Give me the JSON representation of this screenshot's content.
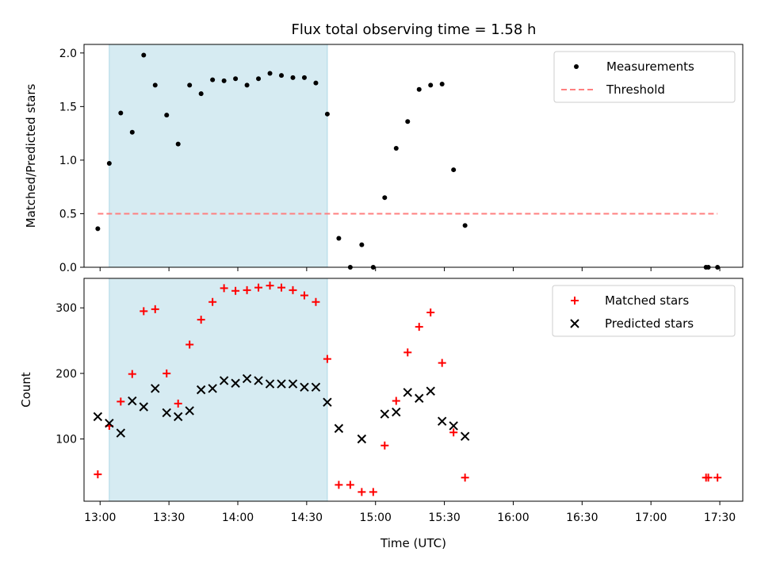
{
  "title": "Flux total observing time = 1.58 h",
  "colors": {
    "observing_band": "#add8e6",
    "measurements": "#000000",
    "threshold": "#ff7f7f",
    "matched": "#ff0000",
    "predicted": "#000000"
  },
  "chart_data": [
    {
      "type": "scatter",
      "panel": "top",
      "ylabel": "Matched/Predicted stars",
      "xlim": [
        "12:53",
        "17:40"
      ],
      "ylim": [
        0,
        2.08
      ],
      "yticks": [
        {
          "v": 0,
          "label": "0.0"
        },
        {
          "v": 0.5,
          "label": "0.5"
        },
        {
          "v": 1.0,
          "label": "1.0"
        },
        {
          "v": 1.5,
          "label": "1.5"
        },
        {
          "v": 2.0,
          "label": "2.0"
        }
      ],
      "xticks": [
        "13:00",
        "13:30",
        "14:00",
        "14:30",
        "15:00",
        "15:30",
        "16:00",
        "16:30",
        "17:00",
        "17:30"
      ],
      "grid": false,
      "legend_position": "top-right",
      "observing_band": {
        "start": "13:04",
        "end": "14:39"
      },
      "series": [
        {
          "name": "Measurements",
          "marker": "dot",
          "points": [
            [
              "12:59",
              0.36
            ],
            [
              "13:04",
              0.97
            ],
            [
              "13:09",
              1.44
            ],
            [
              "13:14",
              1.26
            ],
            [
              "13:19",
              1.98
            ],
            [
              "13:24",
              1.7
            ],
            [
              "13:29",
              1.42
            ],
            [
              "13:34",
              1.15
            ],
            [
              "13:39",
              1.7
            ],
            [
              "13:44",
              1.62
            ],
            [
              "13:49",
              1.75
            ],
            [
              "13:54",
              1.74
            ],
            [
              "13:59",
              1.76
            ],
            [
              "14:04",
              1.7
            ],
            [
              "14:09",
              1.76
            ],
            [
              "14:14",
              1.81
            ],
            [
              "14:19",
              1.79
            ],
            [
              "14:24",
              1.77
            ],
            [
              "14:29",
              1.77
            ],
            [
              "14:34",
              1.72
            ],
            [
              "14:39",
              1.43
            ],
            [
              "14:44",
              0.27
            ],
            [
              "14:49",
              0.0
            ],
            [
              "14:54",
              0.21
            ],
            [
              "14:59",
              0.0
            ],
            [
              "15:04",
              0.65
            ],
            [
              "15:09",
              1.11
            ],
            [
              "15:14",
              1.36
            ],
            [
              "15:19",
              1.66
            ],
            [
              "15:24",
              1.7
            ],
            [
              "15:29",
              1.71
            ],
            [
              "15:34",
              0.91
            ],
            [
              "15:39",
              0.39
            ],
            [
              "17:24",
              0.0
            ],
            [
              "17:25",
              0.0
            ],
            [
              "17:29",
              0.0
            ]
          ]
        },
        {
          "name": "Threshold",
          "style": "dashed",
          "points": [
            [
              "12:59",
              0.5
            ],
            [
              "17:29",
              0.5
            ]
          ]
        }
      ]
    },
    {
      "type": "scatter",
      "panel": "bottom",
      "xlabel": "Time (UTC)",
      "ylabel": "Count",
      "xlim": [
        "12:53",
        "17:40"
      ],
      "ylim": [
        5,
        345
      ],
      "yticks": [
        {
          "v": 100,
          "label": "100"
        },
        {
          "v": 200,
          "label": "200"
        },
        {
          "v": 300,
          "label": "300"
        }
      ],
      "xticks": [
        "13:00",
        "13:30",
        "14:00",
        "14:30",
        "15:00",
        "15:30",
        "16:00",
        "16:30",
        "17:00",
        "17:30"
      ],
      "grid": false,
      "legend_position": "top-right",
      "observing_band": {
        "start": "13:04",
        "end": "14:39"
      },
      "series": [
        {
          "name": "Matched stars",
          "marker": "plus",
          "points": [
            [
              "12:59",
              46
            ],
            [
              "13:04",
              120
            ],
            [
              "13:09",
              157
            ],
            [
              "13:14",
              199
            ],
            [
              "13:19",
              295
            ],
            [
              "13:24",
              298
            ],
            [
              "13:29",
              200
            ],
            [
              "13:34",
              154
            ],
            [
              "13:39",
              244
            ],
            [
              "13:44",
              282
            ],
            [
              "13:49",
              309
            ],
            [
              "13:54",
              330
            ],
            [
              "13:59",
              326
            ],
            [
              "14:04",
              327
            ],
            [
              "14:09",
              331
            ],
            [
              "14:14",
              334
            ],
            [
              "14:19",
              331
            ],
            [
              "14:24",
              327
            ],
            [
              "14:29",
              319
            ],
            [
              "14:34",
              309
            ],
            [
              "14:39",
              222
            ],
            [
              "14:44",
              30
            ],
            [
              "14:49",
              30
            ],
            [
              "14:54",
              19
            ],
            [
              "14:59",
              19
            ],
            [
              "15:04",
              90
            ],
            [
              "15:09",
              158
            ],
            [
              "15:14",
              232
            ],
            [
              "15:19",
              271
            ],
            [
              "15:24",
              293
            ],
            [
              "15:29",
              216
            ],
            [
              "15:34",
              110
            ],
            [
              "15:39",
              41
            ],
            [
              "17:24",
              41
            ],
            [
              "17:25",
              41
            ],
            [
              "17:29",
              41
            ]
          ]
        },
        {
          "name": "Predicted stars",
          "marker": "x",
          "points": [
            [
              "12:59",
              134
            ],
            [
              "13:04",
              124
            ],
            [
              "13:09",
              109
            ],
            [
              "13:14",
              158
            ],
            [
              "13:19",
              149
            ],
            [
              "13:24",
              177
            ],
            [
              "13:29",
              140
            ],
            [
              "13:34",
              134
            ],
            [
              "13:39",
              143
            ],
            [
              "13:44",
              175
            ],
            [
              "13:49",
              177
            ],
            [
              "13:54",
              189
            ],
            [
              "13:59",
              185
            ],
            [
              "14:04",
              192
            ],
            [
              "14:09",
              189
            ],
            [
              "14:14",
              184
            ],
            [
              "14:19",
              184
            ],
            [
              "14:24",
              184
            ],
            [
              "14:29",
              179
            ],
            [
              "14:34",
              179
            ],
            [
              "14:39",
              156
            ],
            [
              "14:44",
              116
            ],
            [
              "14:54",
              100
            ],
            [
              "15:04",
              138
            ],
            [
              "15:09",
              141
            ],
            [
              "15:14",
              171
            ],
            [
              "15:19",
              162
            ],
            [
              "15:24",
              173
            ],
            [
              "15:29",
              127
            ],
            [
              "15:34",
              120
            ],
            [
              "15:39",
              104
            ]
          ]
        }
      ]
    }
  ]
}
